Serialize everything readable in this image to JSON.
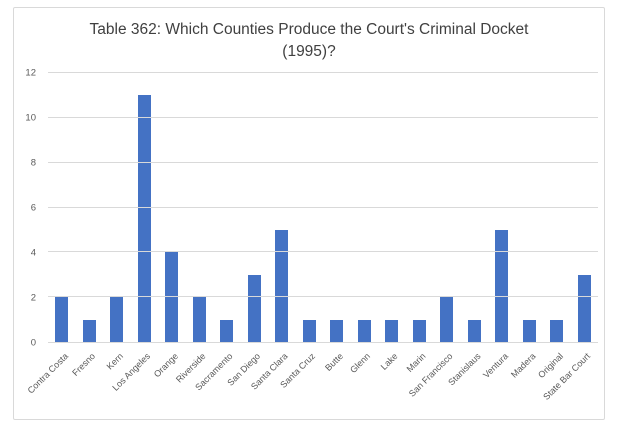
{
  "chart_data": {
    "type": "bar",
    "title": "Table 362: Which Counties Produce the Court's Criminal Docket (1995)?",
    "categories": [
      "Contra Costa",
      "Fresno",
      "Kern",
      "Los Angeles",
      "Orange",
      "Riverside",
      "Sacramento",
      "San Diego",
      "Santa Clara",
      "Santa Cruz",
      "Butte",
      "Glenn",
      "Lake",
      "Marin",
      "San Francisco",
      "Stanislaus",
      "Ventura",
      "Madera",
      "Original",
      "State Bar Court"
    ],
    "values": [
      2,
      1,
      2,
      11,
      4,
      2,
      1,
      3,
      5,
      1,
      1,
      1,
      1,
      1,
      2,
      1,
      5,
      1,
      1,
      3
    ],
    "xlabel": "",
    "ylabel": "",
    "ylim": [
      0,
      12
    ],
    "yticks": [
      0,
      2,
      4,
      6,
      8,
      10,
      12
    ],
    "grid": true,
    "legend": "none",
    "bar_color": "#4472C4",
    "gridline_color": "#D9D9D9",
    "axis_label_color": "#595959",
    "title_color": "#404040",
    "frame_border_color": "#D9D9D9",
    "background_color": "#FFFFFF"
  }
}
